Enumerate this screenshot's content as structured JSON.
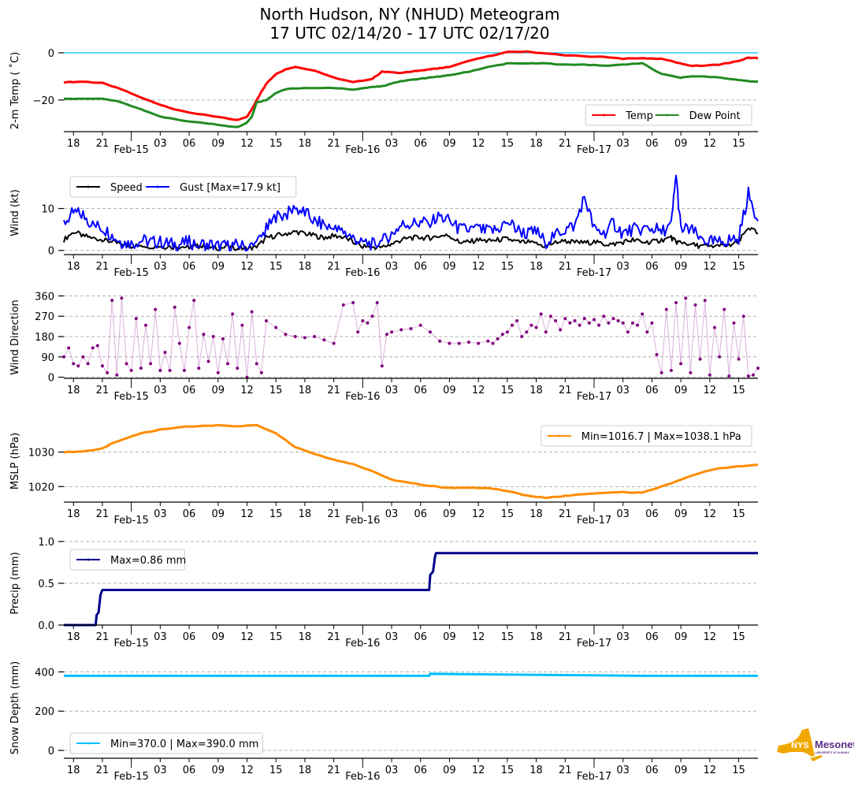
{
  "title": {
    "line1": "North Hudson, NY (NHUD) Meteogram",
    "line2": "17 UTC 02/14/20 - 17 UTC 02/17/20"
  },
  "logo": {
    "text1": "NYS",
    "text2": "Mesonet",
    "text3": "UNIVERSITY AT ALBANY",
    "color_state": "#F0A800",
    "color_text": "#5B2C86"
  },
  "chart_data": [
    {
      "type": "line",
      "id": "temp",
      "ylabel": "2-m Temp ($^\\circ$C)",
      "ylabel_text": "2-m Temp ( ˚C)",
      "ylim": [
        -33.4,
        1
      ],
      "yticks": [
        0,
        -20
      ],
      "ytick_labels": [
        "0",
        "−20"
      ],
      "reference_line": {
        "value": 0,
        "color": "#00BFFF"
      },
      "legend": {
        "placement": "lower-right",
        "ncol": 2
      },
      "xlabel": "",
      "x_hours": [
        0,
        2,
        4,
        6,
        8,
        10,
        12,
        14,
        16,
        18,
        19,
        19.5,
        20,
        21,
        22,
        23,
        24,
        26,
        28,
        30,
        32,
        33,
        34,
        35,
        36,
        37,
        38,
        39,
        40,
        42,
        44,
        46,
        48,
        50,
        52,
        54,
        56,
        58,
        60,
        62,
        64,
        65,
        66,
        68,
        70,
        71,
        72
      ],
      "series": [
        {
          "name": "Temp",
          "color": "#FF0000",
          "values": [
            -12.5,
            -12.2,
            -12.8,
            -15.5,
            -19,
            -22,
            -24.5,
            -26,
            -27.2,
            -28.5,
            -27,
            -24,
            -20,
            -13,
            -9,
            -7,
            -6,
            -7.5,
            -10.5,
            -12.5,
            -11,
            -8,
            -8.2,
            -8.5,
            -8,
            -7.5,
            -7,
            -6.5,
            -6,
            -3.5,
            -1.5,
            0.3,
            0.5,
            -0.3,
            -1,
            -1.5,
            -1.8,
            -2.5,
            -2.3,
            -2.5,
            -4.5,
            -5.5,
            -5.5,
            -5,
            -3.5,
            -2,
            -2.3
          ]
        },
        {
          "name": "Dew Point",
          "color": "#228B22",
          "values": [
            -19.5,
            -19.5,
            -19.3,
            -21,
            -24,
            -27,
            -28.5,
            -29.5,
            -30.5,
            -31.5,
            -29.5,
            -27,
            -21,
            -20,
            -17,
            -15.5,
            -15,
            -14.8,
            -15,
            -15.5,
            -14.5,
            -14.2,
            -13,
            -12,
            -11.5,
            -11,
            -10.5,
            -10,
            -9.5,
            -8,
            -6,
            -4.5,
            -4.5,
            -4.5,
            -5,
            -5,
            -5.5,
            -5,
            -4.5,
            -9,
            -10.5,
            -10,
            -10,
            -10.5,
            -11.5,
            -12,
            -12.2
          ]
        }
      ]
    },
    {
      "type": "line",
      "id": "wind",
      "ylabel": "Wind (kt)",
      "ylim": [
        -1,
        18
      ],
      "yticks": [
        0,
        10
      ],
      "ytick_labels": [
        "0",
        "10"
      ],
      "legend": {
        "placement": "upper-left",
        "ncol": 2
      },
      "x_hours": [
        0,
        1,
        2,
        3,
        4,
        5,
        6,
        7,
        8,
        9,
        10,
        11,
        12,
        13,
        14,
        15,
        16,
        17,
        18,
        19,
        20,
        21,
        22,
        23,
        24,
        25,
        26,
        27,
        28,
        29,
        30,
        31,
        32,
        33,
        34,
        35,
        36,
        37,
        38,
        39,
        40,
        41,
        42,
        43,
        44,
        45,
        46,
        47,
        48,
        49,
        50,
        51,
        52,
        53,
        54,
        55,
        56,
        57,
        58,
        59,
        60,
        61,
        62,
        63,
        63.5,
        64,
        65,
        66,
        67,
        68,
        69,
        70,
        71,
        72
      ],
      "series": [
        {
          "name": "Speed",
          "color": "#000000",
          "values": [
            2.5,
            4.5,
            3.5,
            3,
            2.5,
            2,
            1.5,
            1,
            1.2,
            1,
            1,
            0.8,
            0.9,
            0.8,
            1,
            0.8,
            0.5,
            0.8,
            0.6,
            0.5,
            0.7,
            3,
            3.5,
            4,
            4.5,
            4,
            3.5,
            3,
            3.5,
            3.2,
            2,
            1,
            0.8,
            0.8,
            1.5,
            2.5,
            3,
            3,
            3,
            3.5,
            3.5,
            2,
            2,
            2.5,
            2.2,
            2.5,
            2.8,
            2,
            2,
            1.5,
            1,
            2,
            2.2,
            2,
            1.8,
            2,
            1.5,
            1.5,
            2,
            2.5,
            2,
            2,
            2.5,
            3,
            2,
            2,
            1.5,
            1,
            1,
            1,
            1.2,
            2,
            5.5,
            4
          ]
        },
        {
          "name": "Gust [Max=17.9 kt]",
          "color": "#0000FF",
          "values": [
            6.5,
            9,
            8.5,
            6,
            5.5,
            3.5,
            2,
            1.5,
            2.5,
            2,
            2,
            1.5,
            1.5,
            2,
            1.5,
            1.5,
            1,
            1,
            1.5,
            0.5,
            1.5,
            5,
            8,
            8.5,
            10,
            9,
            7,
            6,
            5,
            4.5,
            3,
            2,
            1.5,
            2,
            4,
            6,
            6.5,
            6.5,
            7,
            8,
            7,
            5,
            5,
            5,
            4.5,
            5,
            7,
            5,
            4,
            4.5,
            2,
            4,
            5,
            6,
            13,
            5,
            4,
            6.5,
            4,
            5,
            5,
            5.5,
            4.5,
            6,
            17.9,
            5,
            5,
            3,
            2,
            2,
            2.5,
            3,
            13.5,
            7
          ]
        }
      ]
    },
    {
      "type": "scatter",
      "id": "wdir",
      "ylabel": "Wind Direction",
      "ylim": [
        -5,
        365
      ],
      "yticks": [
        0,
        90,
        180,
        270,
        360
      ],
      "ytick_labels": [
        "0",
        "90",
        "180",
        "270",
        "360"
      ],
      "color": "#800080",
      "x_hours": [
        0,
        0.5,
        1,
        1.5,
        2,
        2.5,
        3,
        3.5,
        4,
        4.5,
        5,
        5.5,
        6,
        6.5,
        7,
        7.5,
        8,
        8.5,
        9,
        9.5,
        10,
        10.5,
        11,
        11.5,
        12,
        12.5,
        13,
        13.5,
        14,
        14.5,
        15,
        15.5,
        16,
        16.5,
        17,
        17.5,
        18,
        18.5,
        19,
        19.5,
        20,
        20.5,
        21,
        22,
        23,
        24,
        25,
        26,
        27,
        28,
        29,
        30,
        30.5,
        31,
        31.5,
        32,
        32.5,
        33,
        33.5,
        34,
        35,
        36,
        37,
        38,
        39,
        40,
        41,
        42,
        43,
        44,
        44.5,
        45,
        45.5,
        46,
        46.5,
        47,
        47.5,
        48,
        48.5,
        49,
        49.5,
        50,
        50.5,
        51,
        51.5,
        52,
        52.5,
        53,
        53.5,
        54,
        54.5,
        55,
        55.5,
        56,
        56.5,
        57,
        57.5,
        58,
        58.5,
        59,
        59.5,
        60,
        60.5,
        61,
        61.5,
        62,
        62.5,
        63,
        63.5,
        64,
        64.5,
        65,
        65.5,
        66,
        66.5,
        67,
        67.5,
        68,
        68.5,
        69,
        69.5,
        70,
        70.5,
        71,
        71.5,
        72
      ],
      "values": [
        90,
        130,
        60,
        50,
        90,
        60,
        130,
        140,
        50,
        20,
        340,
        10,
        350,
        60,
        30,
        260,
        40,
        230,
        60,
        300,
        30,
        110,
        30,
        310,
        150,
        30,
        220,
        340,
        40,
        190,
        70,
        180,
        20,
        170,
        60,
        280,
        40,
        230,
        0,
        290,
        60,
        20,
        250,
        220,
        190,
        180,
        175,
        180,
        165,
        150,
        320,
        330,
        200,
        250,
        240,
        270,
        330,
        50,
        190,
        200,
        210,
        215,
        230,
        200,
        160,
        150,
        150,
        155,
        150,
        160,
        150,
        170,
        190,
        200,
        230,
        250,
        180,
        200,
        230,
        220,
        280,
        200,
        270,
        250,
        210,
        260,
        240,
        250,
        230,
        260,
        240,
        255,
        230,
        270,
        240,
        260,
        250,
        240,
        200,
        240,
        230,
        280,
        200,
        240,
        100,
        20,
        300,
        30,
        330,
        60,
        350,
        20,
        320,
        80,
        340,
        10,
        220,
        90,
        300,
        5,
        240,
        80,
        270,
        5,
        10,
        40,
        50
      ]
    },
    {
      "type": "line",
      "id": "mslp",
      "ylabel": "MSLP (hPa)",
      "ylim": [
        1015.5,
        1039.5
      ],
      "yticks": [
        1020,
        1030
      ],
      "ytick_labels": [
        "1020",
        "1030"
      ],
      "legend": {
        "placement": "upper-right",
        "ncol": 1
      },
      "x_hours": [
        0,
        2,
        4,
        5,
        6,
        8,
        10,
        12,
        14,
        16,
        18,
        20,
        22,
        24,
        26,
        28,
        30,
        32,
        34,
        36,
        38,
        40,
        42,
        44,
        46,
        48,
        50,
        52,
        54,
        56,
        58,
        60,
        62,
        64,
        66,
        68,
        70,
        72
      ],
      "series": [
        {
          "name": "Min=1016.7 | Max=1038.1 hPa",
          "color": "#FF8C00",
          "values": [
            1030,
            1030.2,
            1031,
            1032.5,
            1033.5,
            1035.5,
            1036.5,
            1037.2,
            1037.5,
            1037.8,
            1037.5,
            1037.8,
            1035.5,
            1031.5,
            1029.5,
            1027.8,
            1026.5,
            1024.5,
            1022,
            1021,
            1020.2,
            1019.6,
            1019.7,
            1019.6,
            1018.7,
            1017.4,
            1016.7,
            1017.3,
            1017.8,
            1018.1,
            1018.4,
            1018.2,
            1020,
            1022,
            1024,
            1025.3,
            1025.8,
            1026.3
          ]
        }
      ]
    },
    {
      "type": "line",
      "id": "precip",
      "ylabel": "Precip (mm)",
      "ylim": [
        0,
        1.0
      ],
      "yticks": [
        0.0,
        0.5,
        1.0
      ],
      "ytick_labels": [
        "0.0",
        "0.5",
        "1.0"
      ],
      "legend": {
        "placement": "upper-left",
        "ncol": 1
      },
      "x_hours": [
        0,
        3.3,
        3.4,
        3.6,
        3.8,
        4.0,
        4.1,
        37.9,
        38.0,
        38.3,
        38.5,
        38.6,
        72
      ],
      "series": [
        {
          "name": "Max=0.86 mm",
          "color": "#00008B",
          "values": [
            0,
            0,
            0.12,
            0.15,
            0.36,
            0.42,
            0.42,
            0.42,
            0.6,
            0.64,
            0.82,
            0.86,
            0.86
          ]
        }
      ]
    },
    {
      "type": "line",
      "id": "snow",
      "ylabel": "Snow Depth (mm)",
      "ylim": [
        -40,
        470
      ],
      "yticks": [
        0,
        200,
        400
      ],
      "ytick_labels": [
        "0",
        "200",
        "400"
      ],
      "legend": {
        "placement": "lower-left",
        "ncol": 1
      },
      "x_hours": [
        0,
        10,
        20,
        30,
        37.9,
        38,
        50,
        60,
        72
      ],
      "series": [
        {
          "name": "Min=370.0 | Max=390.0 mm",
          "color": "#00BFFF",
          "values": [
            380,
            380,
            380,
            380,
            380,
            390,
            385,
            380,
            380
          ]
        }
      ]
    }
  ],
  "x_axis": {
    "start": "17 UTC 02/14/20",
    "end": "17 UTC 02/17/20",
    "range_hours": [
      0,
      72
    ],
    "minor_ticks": [
      {
        "h": 1,
        "label": "18"
      },
      {
        "h": 4,
        "label": "21"
      },
      {
        "h": 10,
        "label": "03"
      },
      {
        "h": 13,
        "label": "06"
      },
      {
        "h": 16,
        "label": "09"
      },
      {
        "h": 19,
        "label": "12"
      },
      {
        "h": 22,
        "label": "15"
      },
      {
        "h": 25,
        "label": "18"
      },
      {
        "h": 28,
        "label": "21"
      },
      {
        "h": 34,
        "label": "03"
      },
      {
        "h": 37,
        "label": "06"
      },
      {
        "h": 40,
        "label": "09"
      },
      {
        "h": 43,
        "label": "12"
      },
      {
        "h": 46,
        "label": "15"
      },
      {
        "h": 49,
        "label": "18"
      },
      {
        "h": 52,
        "label": "21"
      },
      {
        "h": 58,
        "label": "03"
      },
      {
        "h": 61,
        "label": "06"
      },
      {
        "h": 64,
        "label": "09"
      },
      {
        "h": 67,
        "label": "12"
      },
      {
        "h": 70,
        "label": "15"
      }
    ],
    "major_ticks": [
      {
        "h": 7,
        "label": "Feb-15"
      },
      {
        "h": 31,
        "label": "Feb-16"
      },
      {
        "h": 55,
        "label": "Feb-17"
      }
    ]
  }
}
